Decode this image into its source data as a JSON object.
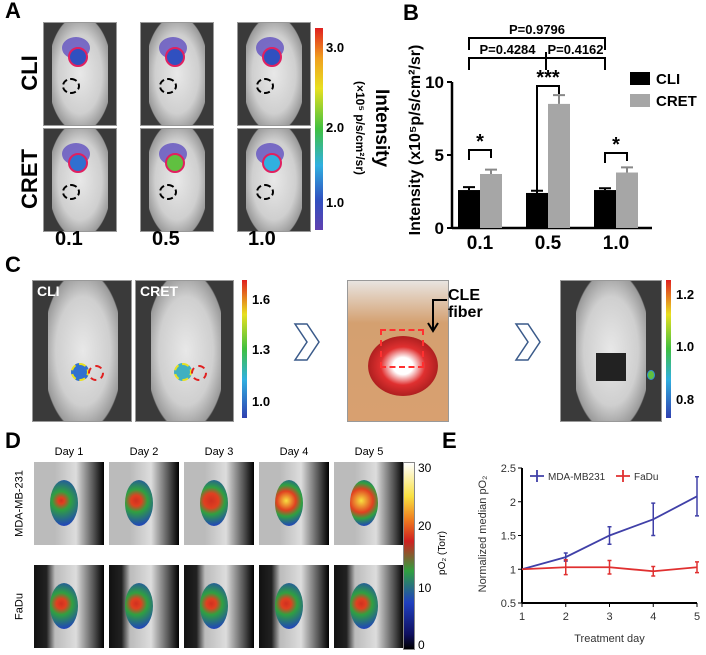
{
  "panels": {
    "a": {
      "label": "A",
      "rows": [
        "CLI",
        "CRET"
      ],
      "columns": [
        "0.1",
        "0.5",
        "1.0"
      ],
      "colorbar": {
        "ticks": [
          "3.0",
          "2.0",
          "1.0"
        ],
        "title": "Intensity",
        "unit": "(×10⁵ p/s/cm²/sr)"
      }
    },
    "b": {
      "label": "B"
    },
    "c": {
      "label": "C",
      "image_labels": [
        "CLI",
        "CRET"
      ],
      "colorbar1_ticks": [
        "1.6",
        "1.3",
        "1.0"
      ],
      "colorbar2_ticks": [
        "1.2",
        "1.0",
        "0.8"
      ],
      "annotation": [
        "CLE",
        "fiber"
      ],
      "arrow_icon": "chevron-right-icon"
    },
    "d": {
      "label": "D",
      "days": [
        "Day 1",
        "Day 2",
        "Day 3",
        "Day 4",
        "Day 5"
      ],
      "rows": [
        "MDA-MB-231",
        "FaDu"
      ],
      "colorbar": {
        "ticks": [
          "30",
          "20",
          "10",
          "0"
        ],
        "title": "pO₂ (Torr)"
      }
    },
    "e": {
      "label": "E"
    }
  },
  "chart_data": [
    {
      "type": "bar",
      "panel": "B",
      "categories": [
        "0.1",
        "0.5",
        "1.0"
      ],
      "ylabel": "Intensity (x10⁵p/s/cm²/sr)",
      "ylim": [
        0,
        10
      ],
      "yticks": [
        "0",
        "5",
        "10"
      ],
      "legend": "top-right",
      "series": [
        {
          "name": "CLI",
          "color": "#000000",
          "values": [
            2.6,
            2.4,
            2.6
          ],
          "errors": [
            0.2,
            0.15,
            0.12
          ]
        },
        {
          "name": "CRET",
          "color": "#a6a6a6",
          "values": [
            3.7,
            8.5,
            3.8
          ],
          "errors": [
            0.3,
            0.6,
            0.35
          ]
        }
      ],
      "annotations": [
        {
          "text": "P=0.9796",
          "from": "0.1",
          "to": "1.0"
        },
        {
          "text": "P=0.4284",
          "from": "0.1",
          "to": "0.5"
        },
        {
          "text": "P=0.4162",
          "from": "0.5",
          "to": "1.0"
        },
        {
          "text": "*",
          "category": "0.1"
        },
        {
          "text": "***",
          "category": "0.5"
        },
        {
          "text": "*",
          "category": "1.0"
        }
      ]
    },
    {
      "type": "line",
      "panel": "E",
      "x": [
        1,
        2,
        3,
        4,
        5
      ],
      "xlabel": "Treatment day",
      "ylabel": "Normalized median pO₂",
      "xlim": [
        1,
        5
      ],
      "ylim": [
        0.5,
        2.5
      ],
      "xticks": [
        "1",
        "2",
        "3",
        "4",
        "5"
      ],
      "yticks": [
        "0.5",
        "1",
        "1.5",
        "2",
        "2.5"
      ],
      "legend": "top",
      "series": [
        {
          "name": "MDA-MB231",
          "color": "#4040a8",
          "values": [
            1.0,
            1.18,
            1.5,
            1.74,
            2.08
          ],
          "errors": [
            0.0,
            0.06,
            0.13,
            0.24,
            0.29
          ]
        },
        {
          "name": "FaDu",
          "color": "#e03030",
          "values": [
            1.0,
            1.03,
            1.03,
            0.97,
            1.03
          ],
          "errors": [
            0.0,
            0.11,
            0.1,
            0.07,
            0.08
          ]
        }
      ]
    }
  ]
}
